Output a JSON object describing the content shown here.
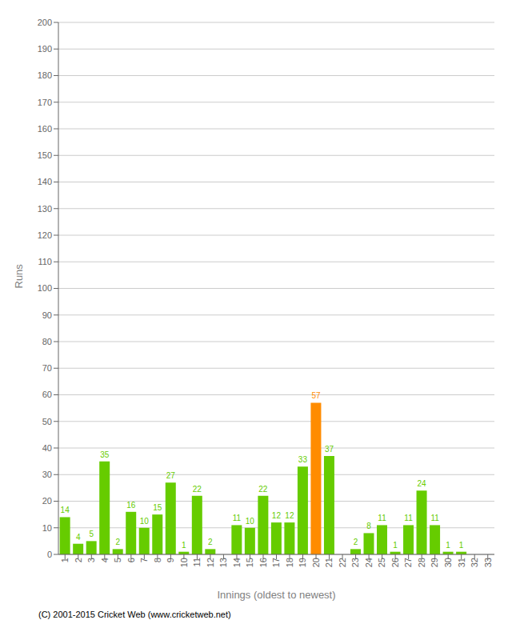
{
  "chart_data": {
    "type": "bar",
    "xlabel": "Innings (oldest to newest)",
    "ylabel": "Runs",
    "categories": [
      "1",
      "2",
      "3",
      "4",
      "5",
      "6",
      "7",
      "8",
      "9",
      "10",
      "11",
      "12",
      "13",
      "14",
      "15",
      "16",
      "17",
      "18",
      "19",
      "20",
      "21",
      "22",
      "23",
      "24",
      "25",
      "26",
      "27",
      "28",
      "29",
      "30",
      "31",
      "32",
      "33"
    ],
    "values": [
      14,
      4,
      5,
      35,
      2,
      16,
      10,
      15,
      27,
      1,
      22,
      2,
      0,
      11,
      10,
      22,
      12,
      12,
      33,
      57,
      37,
      0,
      2,
      8,
      11,
      1,
      11,
      24,
      11,
      1,
      1,
      0,
      0
    ],
    "colors": [
      "#66cc00",
      "#66cc00",
      "#66cc00",
      "#66cc00",
      "#66cc00",
      "#66cc00",
      "#66cc00",
      "#66cc00",
      "#66cc00",
      "#66cc00",
      "#66cc00",
      "#66cc00",
      "#66cc00",
      "#66cc00",
      "#66cc00",
      "#66cc00",
      "#66cc00",
      "#66cc00",
      "#66cc00",
      "#ff8c00",
      "#66cc00",
      "#66cc00",
      "#66cc00",
      "#66cc00",
      "#66cc00",
      "#66cc00",
      "#66cc00",
      "#66cc00",
      "#66cc00",
      "#66cc00",
      "#66cc00",
      "#66cc00",
      "#66cc00"
    ],
    "ylim": [
      0,
      200
    ],
    "yticks": [
      0,
      10,
      20,
      30,
      40,
      50,
      60,
      70,
      80,
      90,
      100,
      110,
      120,
      130,
      140,
      150,
      160,
      170,
      180,
      190,
      200
    ],
    "grid": true,
    "data_labels": true,
    "annotations": [
      "(C) 2001-2015 Cricket Web (www.cricketweb.net)"
    ]
  }
}
